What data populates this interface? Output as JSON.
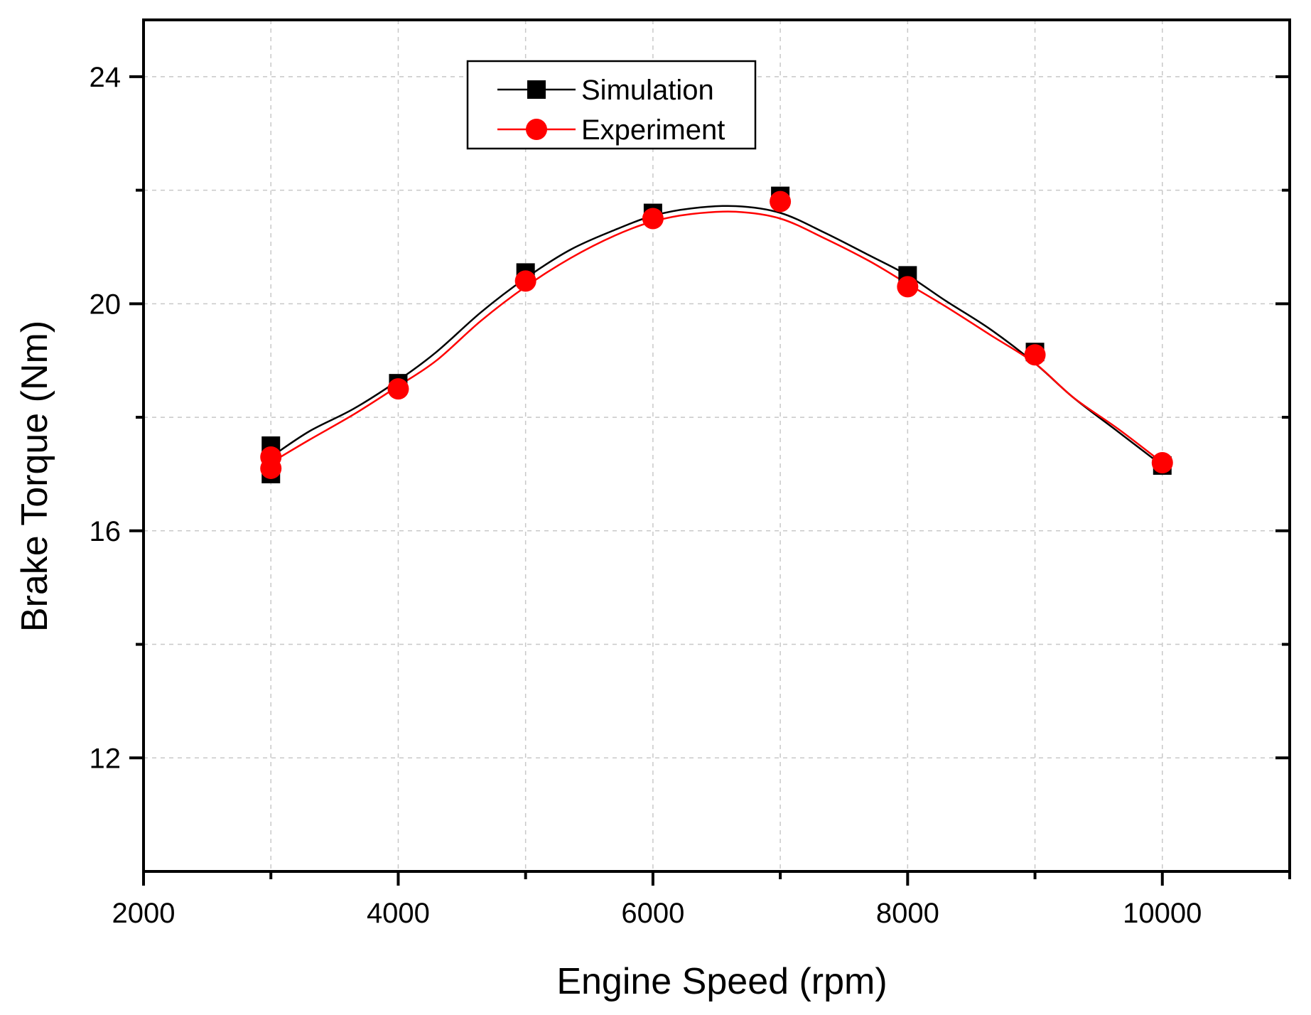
{
  "chart_data": {
    "type": "line",
    "title": "",
    "xlabel": "Engine Speed (rpm)",
    "ylabel": "Brake Torque (Nm)",
    "xlim": [
      2000,
      11000
    ],
    "ylim": [
      10,
      25
    ],
    "x_major_ticks": [
      2000,
      4000,
      6000,
      8000,
      10000
    ],
    "y_major_ticks": [
      12,
      16,
      20,
      24
    ],
    "x_minor_ticks": [
      3000,
      5000,
      7000,
      9000,
      11000
    ],
    "y_minor_ticks": [
      14,
      18,
      22
    ],
    "x_tick_labels": [
      "2000",
      "4000",
      "6000",
      "8000",
      "10000"
    ],
    "y_tick_labels": [
      "12",
      "16",
      "20",
      "24"
    ],
    "grid": true,
    "legend_position": "top-left",
    "series": [
      {
        "name": "Simulation",
        "color": "#000000",
        "marker": "square",
        "x": [
          3000,
          3000,
          4000,
          5000,
          6000,
          7000,
          8000,
          9000,
          10000
        ],
        "y": [
          17.0,
          17.5,
          18.6,
          20.55,
          21.6,
          21.9,
          20.5,
          19.15,
          17.15
        ]
      },
      {
        "name": "Experiment",
        "color": "#ff0000",
        "marker": "circle",
        "x": [
          3000,
          3000,
          4000,
          5000,
          6000,
          7000,
          8000,
          9000,
          10000
        ],
        "y": [
          17.1,
          17.3,
          18.5,
          20.4,
          21.5,
          21.8,
          20.3,
          19.1,
          17.2
        ]
      }
    ],
    "curves": [
      {
        "series": "Simulation",
        "x": [
          3000,
          3300,
          3650,
          4000,
          4300,
          4650,
          5000,
          5350,
          5700,
          6000,
          6300,
          6650,
          7000,
          7350,
          7700,
          8000,
          8300,
          8650,
          9000,
          9300,
          9650,
          10000
        ],
        "y": [
          17.3,
          17.75,
          18.15,
          18.65,
          19.15,
          19.85,
          20.45,
          20.95,
          21.3,
          21.55,
          21.68,
          21.72,
          21.6,
          21.25,
          20.85,
          20.5,
          20.05,
          19.55,
          18.95,
          18.35,
          17.75,
          17.15
        ]
      },
      {
        "series": "Experiment",
        "x": [
          3000,
          3300,
          3650,
          4000,
          4300,
          4650,
          5000,
          5350,
          5700,
          6000,
          6300,
          6650,
          7000,
          7350,
          7700,
          8000,
          8300,
          8650,
          9000,
          9300,
          9650,
          10000
        ],
        "y": [
          17.2,
          17.6,
          18.05,
          18.55,
          19.0,
          19.7,
          20.3,
          20.8,
          21.2,
          21.45,
          21.58,
          21.62,
          21.5,
          21.15,
          20.75,
          20.35,
          19.95,
          19.45,
          18.95,
          18.35,
          17.8,
          17.2
        ]
      }
    ]
  }
}
